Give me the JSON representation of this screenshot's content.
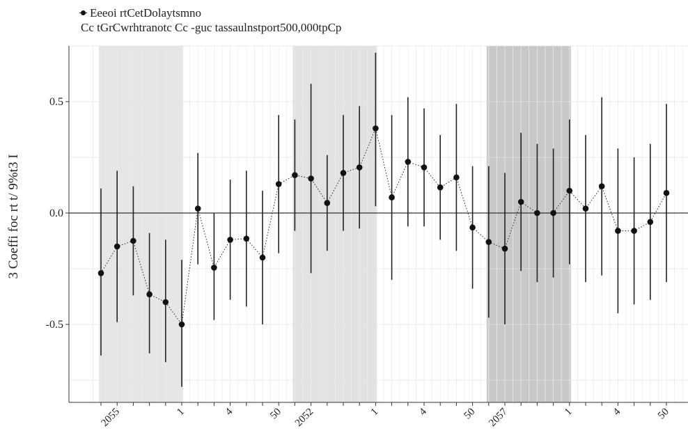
{
  "legend": {
    "line1": "Eeeoi rtCetDolaytsmno",
    "line2": "Cc tGrCwrhtranotc Cc -guc tassaulnstport500,000tpCp"
  },
  "chart_data": {
    "type": "scatter",
    "title": "",
    "ylabel": "3 Coeffi foc rt  t/ 9%t3 I",
    "xlabel": "",
    "ylim": [
      -0.85,
      0.75
    ],
    "yticks": [
      -0.5,
      0.0,
      0.5
    ],
    "ytick_labels": [
      "-0.5",
      "0.0",
      "0.5"
    ],
    "x_tick_labels": [
      {
        "index": 1,
        "label": "2055"
      },
      {
        "index": 5,
        "label": "1"
      },
      {
        "index": 8,
        "label": "4"
      },
      {
        "index": 11,
        "label": "50"
      },
      {
        "index": 13,
        "label": "2052"
      },
      {
        "index": 17,
        "label": "1"
      },
      {
        "index": 20,
        "label": "4"
      },
      {
        "index": 23,
        "label": "50"
      },
      {
        "index": 25,
        "label": "2057"
      },
      {
        "index": 29,
        "label": "1"
      },
      {
        "index": 32,
        "label": "4"
      },
      {
        "index": 35,
        "label": "50"
      }
    ],
    "shaded_regions": [
      {
        "start": 0,
        "end": 5,
        "color": "#e6e6e6"
      },
      {
        "start": 12,
        "end": 17,
        "color": "#e2e2e2"
      },
      {
        "start": 24,
        "end": 29,
        "color": "#c8c8c8"
      }
    ],
    "grid": true,
    "reference_line": 0,
    "series": [
      {
        "y": [
          -0.27,
          -0.15,
          -0.125,
          -0.365,
          -0.4,
          -0.5,
          0.02,
          -0.245,
          -0.12,
          -0.115,
          -0.2,
          0.13,
          0.17,
          0.155,
          0.045,
          0.18,
          0.205,
          0.38,
          0.07,
          0.23,
          0.205,
          0.115,
          0.16,
          -0.065,
          -0.13,
          -0.16,
          0.05,
          0.0,
          0.0,
          0.1,
          0.02,
          0.12,
          -0.08,
          -0.08,
          -0.04,
          0.09
        ],
        "lower": [
          -0.64,
          -0.49,
          -0.37,
          -0.63,
          -0.67,
          -0.78,
          -0.23,
          -0.48,
          -0.39,
          -0.42,
          -0.5,
          -0.18,
          -0.08,
          -0.27,
          -0.17,
          -0.08,
          -0.07,
          0.03,
          -0.3,
          -0.06,
          -0.06,
          -0.12,
          -0.17,
          -0.34,
          -0.47,
          -0.5,
          -0.26,
          -0.31,
          -0.29,
          -0.23,
          -0.31,
          -0.28,
          -0.45,
          -0.41,
          -0.39,
          -0.31
        ],
        "upper": [
          0.11,
          0.19,
          0.12,
          -0.09,
          -0.12,
          -0.21,
          0.27,
          0.0,
          0.15,
          0.19,
          0.1,
          0.44,
          0.42,
          0.58,
          0.26,
          0.44,
          0.48,
          0.72,
          0.44,
          0.52,
          0.47,
          0.35,
          0.49,
          0.21,
          0.21,
          0.18,
          0.36,
          0.31,
          0.29,
          0.42,
          0.35,
          0.52,
          0.29,
          0.25,
          0.31,
          0.49
        ]
      }
    ]
  }
}
